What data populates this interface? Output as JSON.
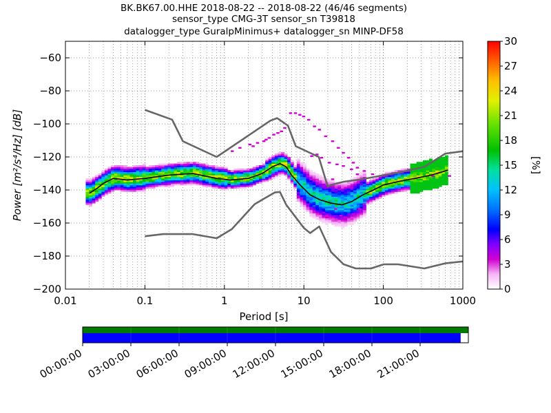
{
  "title_lines": [
    "BK.BK67.00.HHE   2018-08-22 -- 2018-08-22  (46/46 segments)",
    "sensor_type CMG-3T sensor_sn T39818",
    "datalogger_type GuralpMinimus+ datalogger_sn MINP-DF58"
  ],
  "chart_data": [
    {
      "type": "heatmap",
      "title": "BK.BK67.00.HHE   2018-08-22 -- 2018-08-22  (46/46 segments)",
      "xlabel": "Period [s]",
      "ylabel": "Power [m²/s⁴/Hz] [dB]",
      "x_scale": "log",
      "xlim": [
        0.01,
        1000
      ],
      "ylim": [
        -200,
        -50
      ],
      "x_ticks": [
        0.01,
        0.1,
        1,
        10,
        100,
        1000
      ],
      "x_tick_labels": [
        "0.01",
        "0.1",
        "1",
        "10",
        "100",
        "1000"
      ],
      "y_ticks": [
        -200,
        -180,
        -160,
        -140,
        -120,
        -100,
        -80,
        -60
      ],
      "y_tick_labels": [
        "−200",
        "−180",
        "−160",
        "−140",
        "−120",
        "−100",
        "−80",
        "−60"
      ],
      "grid": true,
      "colorbar": {
        "label": "[%]",
        "range": [
          0,
          30
        ],
        "ticks": [
          0,
          3,
          6,
          9,
          12,
          15,
          18,
          21,
          24,
          27,
          30
        ],
        "tick_labels": [
          "0",
          "3",
          "6",
          "9",
          "12",
          "15",
          "18",
          "21",
          "24",
          "27",
          "30"
        ]
      },
      "series": [
        {
          "style": "gray-line",
          "x": [
            0.1,
            0.22,
            0.3,
            0.8,
            3.8,
            4.6,
            6.3,
            7.9,
            15.4,
            20,
            21.9,
            31.6,
            45,
            70,
            101,
            154,
            328,
            600,
            10000
          ],
          "y": [
            -91.5,
            -97.4,
            -110.5,
            -120.0,
            -98.0,
            -96.5,
            -101.0,
            -113.5,
            -120.0,
            -138.0,
            -137.0,
            -135.0,
            -134.0,
            -132.5,
            -131.0,
            -129.5,
            -126.0,
            -118.0,
            -110.0
          ]
        },
        {
          "style": "gray-line",
          "x": [
            0.1,
            0.17,
            0.4,
            0.8,
            1.24,
            2.4,
            4.3,
            5.0,
            6.0,
            10,
            12,
            15.6,
            21.9,
            31.6,
            45,
            70,
            101,
            154,
            328,
            600,
            10000
          ],
          "y": [
            -168.0,
            -166.7,
            -166.7,
            -169.2,
            -163.7,
            -148.6,
            -141.5,
            -141.2,
            -149.0,
            -163.0,
            -166.1,
            -162.1,
            -177.5,
            -185.0,
            -187.5,
            -187.5,
            -185.0,
            -185.0,
            -187.5,
            -184.4,
            -178.0
          ]
        },
        {
          "style": "black-line",
          "x": [
            0.02,
            0.025,
            0.03,
            0.04,
            0.06,
            0.1,
            0.2,
            0.4,
            0.8,
            1.2,
            2.0,
            3.0,
            4.0,
            5.0,
            6.0,
            7.0,
            9.0,
            12.0,
            16.0,
            22.0,
            30.0,
            40.0,
            55.0,
            75.0,
            100,
            150,
            250,
            400,
            650
          ],
          "y": [
            -142,
            -139,
            -136,
            -133,
            -134,
            -133,
            -131,
            -130,
            -133,
            -134,
            -133,
            -130,
            -126,
            -124,
            -126,
            -131,
            -137,
            -143,
            -146,
            -148,
            -149,
            -147,
            -143,
            -140,
            -137,
            -135,
            -133,
            -131,
            -128
          ]
        }
      ],
      "time_coverage": {
        "tick_labels": [
          "00:00:00",
          "03:00:00",
          "06:00:00",
          "09:00:00",
          "12:00:00",
          "15:00:00",
          "18:00:00",
          "21:00:00"
        ],
        "data_fraction": 0.98,
        "colors": {
          "upper": "#007a00",
          "lower": "#0000ff"
        }
      }
    }
  ]
}
